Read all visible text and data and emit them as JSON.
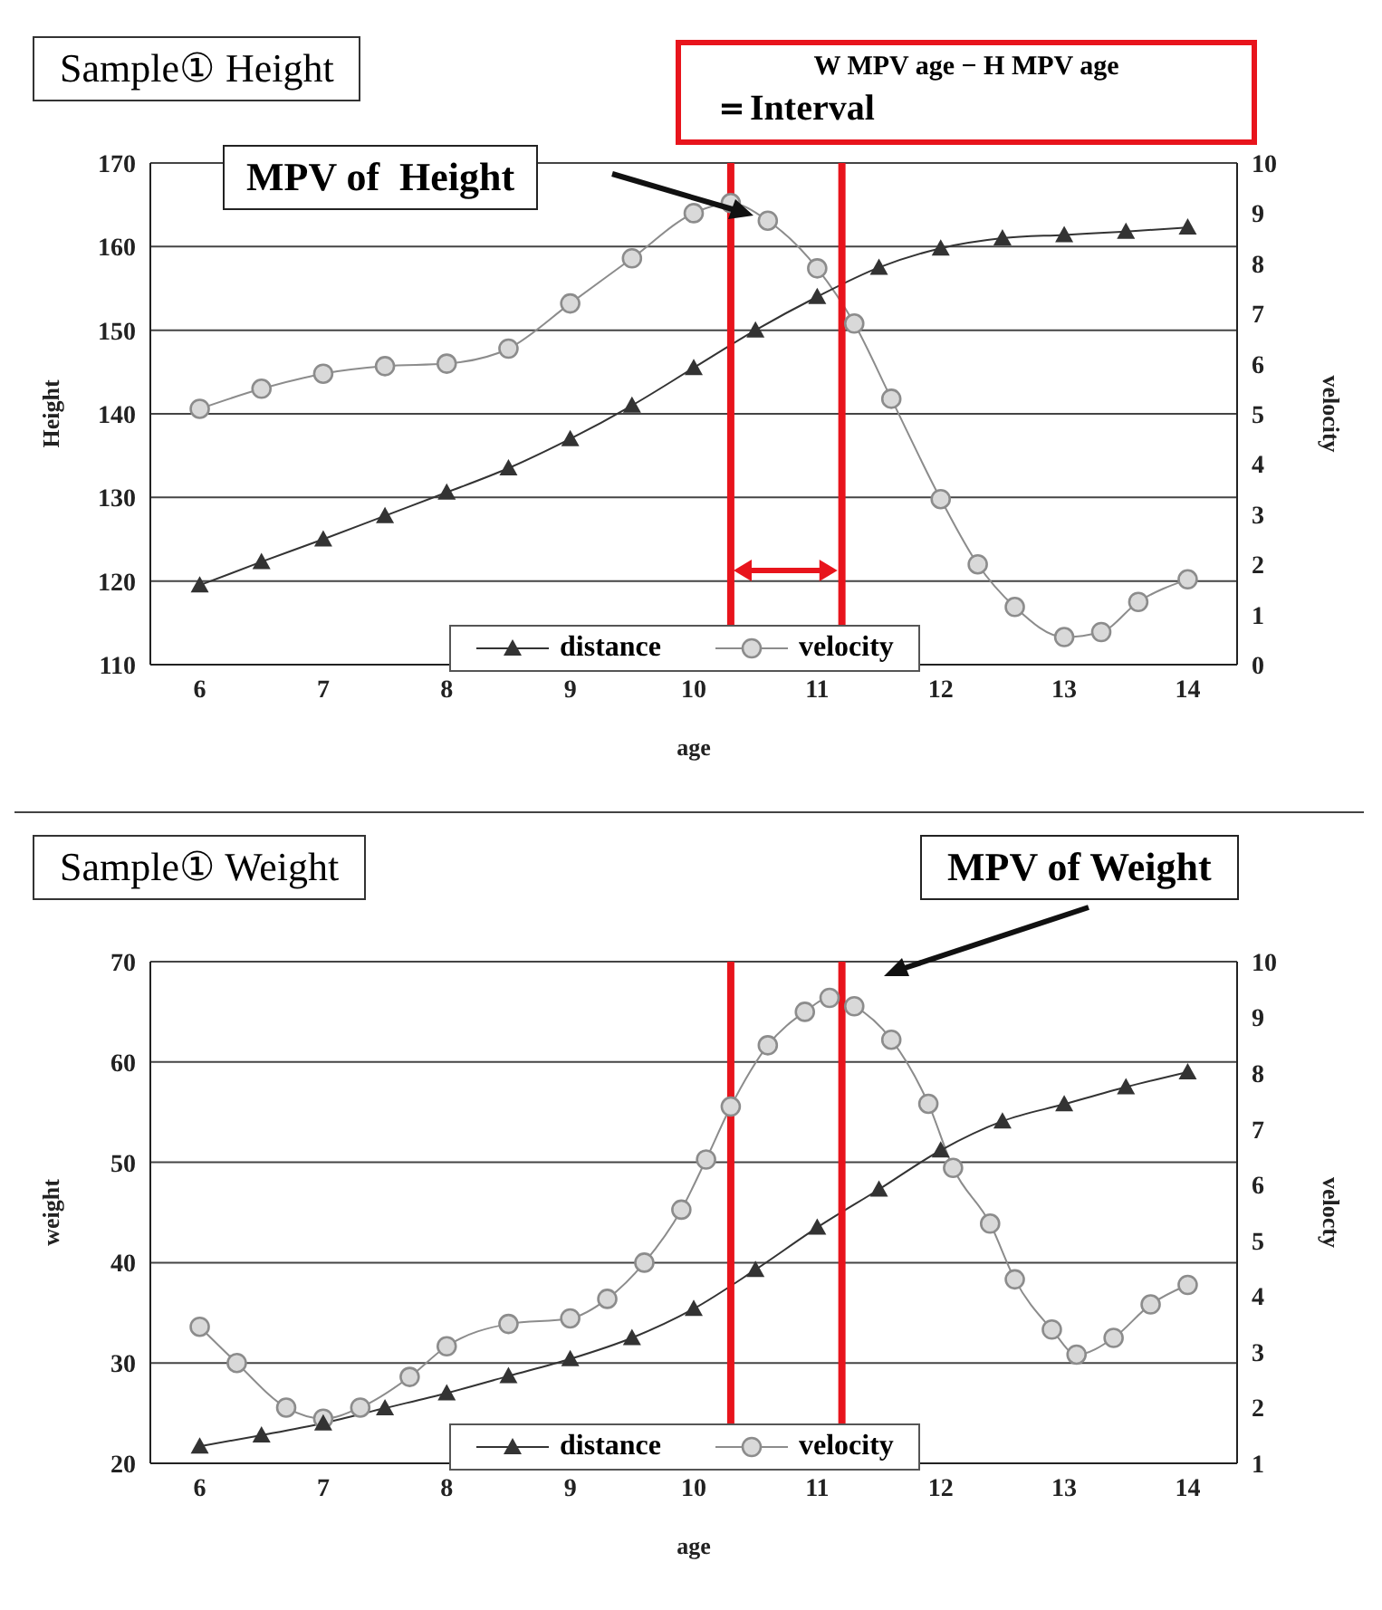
{
  "chart_data": [
    {
      "type": "line",
      "title": "Sample① Height",
      "xlabel": "age",
      "ylabel": "Height",
      "y2label": "velocity",
      "xlim": [
        5.6,
        14.4
      ],
      "xticks": [
        6,
        7,
        8,
        9,
        10,
        11,
        12,
        13,
        14
      ],
      "ylim": [
        110,
        170
      ],
      "yticks": [
        110,
        120,
        130,
        140,
        150,
        160,
        170
      ],
      "y2lim": [
        0,
        10
      ],
      "y2ticks": [
        0,
        1,
        2,
        3,
        4,
        5,
        6,
        7,
        8,
        9,
        10
      ],
      "grid": "y",
      "legend": "bottom",
      "series": [
        {
          "name": "distance",
          "color": "#333333",
          "marker": "triangle",
          "x": [
            6,
            6.5,
            7,
            7.5,
            8,
            8.5,
            9,
            9.5,
            10,
            10.5,
            11,
            11.5,
            12,
            12.5,
            13,
            13.5,
            14
          ],
          "values": [
            119.5,
            122.3,
            125,
            127.8,
            130.6,
            133.5,
            137,
            141,
            145.5,
            150,
            154,
            157.5,
            159.8,
            161,
            161.4,
            161.8,
            162.3
          ]
        },
        {
          "name": "velocity",
          "color": "#8c8c8c",
          "marker": "circle",
          "axis": "y2",
          "x": [
            6,
            6.5,
            7,
            7.5,
            8,
            8.5,
            9,
            9.5,
            10,
            10.3,
            10.6,
            11,
            11.3,
            11.6,
            12,
            12.3,
            12.6,
            13,
            13.3,
            13.6,
            14
          ],
          "values": [
            5.1,
            5.5,
            5.8,
            5.95,
            6,
            6.3,
            7.2,
            8.1,
            9,
            9.2,
            8.85,
            7.9,
            6.8,
            5.3,
            3.3,
            2,
            1.15,
            0.55,
            0.65,
            1.25,
            1.7
          ]
        }
      ],
      "ref_lines": [
        {
          "axis": "x",
          "value": 10.3,
          "color": "#e8141c"
        },
        {
          "axis": "x",
          "value": 11.2,
          "color": "#e8141c"
        }
      ],
      "annotations": [
        "MPV of  Height",
        "W MPV age − H MPV age",
        "＝Interval"
      ]
    },
    {
      "type": "line",
      "title": "Sample① Weight",
      "xlabel": "age",
      "ylabel": "weight",
      "y2label": "velocty",
      "xlim": [
        5.6,
        14.4
      ],
      "xticks": [
        6,
        7,
        8,
        9,
        10,
        11,
        12,
        13,
        14
      ],
      "ylim": [
        20,
        70
      ],
      "yticks": [
        20,
        30,
        40,
        50,
        60,
        70
      ],
      "y2lim": [
        1,
        10
      ],
      "y2ticks": [
        1,
        2,
        3,
        4,
        5,
        6,
        7,
        8,
        9,
        10
      ],
      "grid": "y",
      "legend": "bottom",
      "series": [
        {
          "name": "distance",
          "color": "#333333",
          "marker": "triangle",
          "x": [
            6,
            6.5,
            7,
            7.5,
            8,
            8.5,
            9,
            9.5,
            10,
            10.5,
            11,
            11.5,
            12,
            12.5,
            13,
            13.5,
            14
          ],
          "values": [
            21.7,
            22.8,
            24,
            25.5,
            27,
            28.7,
            30.4,
            32.5,
            35.4,
            39.3,
            43.5,
            47.3,
            51.2,
            54.1,
            55.8,
            57.5,
            59
          ]
        },
        {
          "name": "velocity",
          "color": "#8c8c8c",
          "marker": "circle",
          "axis": "y2",
          "x": [
            6,
            6.3,
            6.7,
            7,
            7.3,
            7.7,
            8,
            8.5,
            9,
            9.3,
            9.6,
            9.9,
            10.1,
            10.3,
            10.6,
            10.9,
            11.1,
            11.3,
            11.6,
            11.9,
            12.1,
            12.4,
            12.6,
            12.9,
            13.1,
            13.4,
            13.7,
            14
          ],
          "values": [
            3.45,
            2.8,
            2,
            1.8,
            2,
            2.55,
            3.1,
            3.5,
            3.6,
            3.95,
            4.6,
            5.55,
            6.45,
            7.4,
            8.5,
            9.1,
            9.35,
            9.2,
            8.6,
            7.45,
            6.3,
            5.3,
            4.3,
            3.4,
            2.95,
            3.25,
            3.85,
            4.2
          ]
        }
      ],
      "ref_lines": [
        {
          "axis": "x",
          "value": 10.3,
          "color": "#e8141c"
        },
        {
          "axis": "x",
          "value": 11.2,
          "color": "#e8141c"
        }
      ],
      "annotations": [
        "MPV of Weight"
      ]
    }
  ]
}
